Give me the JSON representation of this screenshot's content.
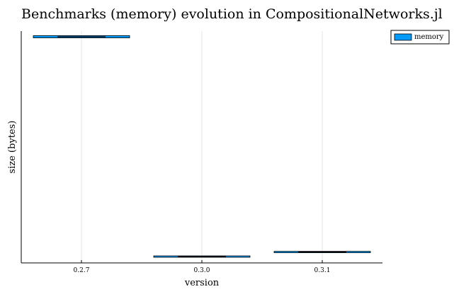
{
  "chart_data": {
    "type": "box",
    "title": "Benchmarks (memory) evolution in CompositionalNetworks.jl",
    "xlabel": "version",
    "ylabel": "size (bytes)",
    "categories": [
      "0.2.7",
      "0.3.0",
      "0.3.1"
    ],
    "series": [
      {
        "name": "memory",
        "color": "#009af9",
        "values": [
          {
            "q1": 0.995,
            "median": 1.0,
            "q3": 1.005
          },
          {
            "q1": 0.027,
            "median": 0.03,
            "q3": 0.033
          },
          {
            "q1": 0.047,
            "median": 0.05,
            "q3": 0.053
          }
        ]
      }
    ],
    "y_ticks_shown": false,
    "grid": true,
    "legend_position": "top-right"
  }
}
